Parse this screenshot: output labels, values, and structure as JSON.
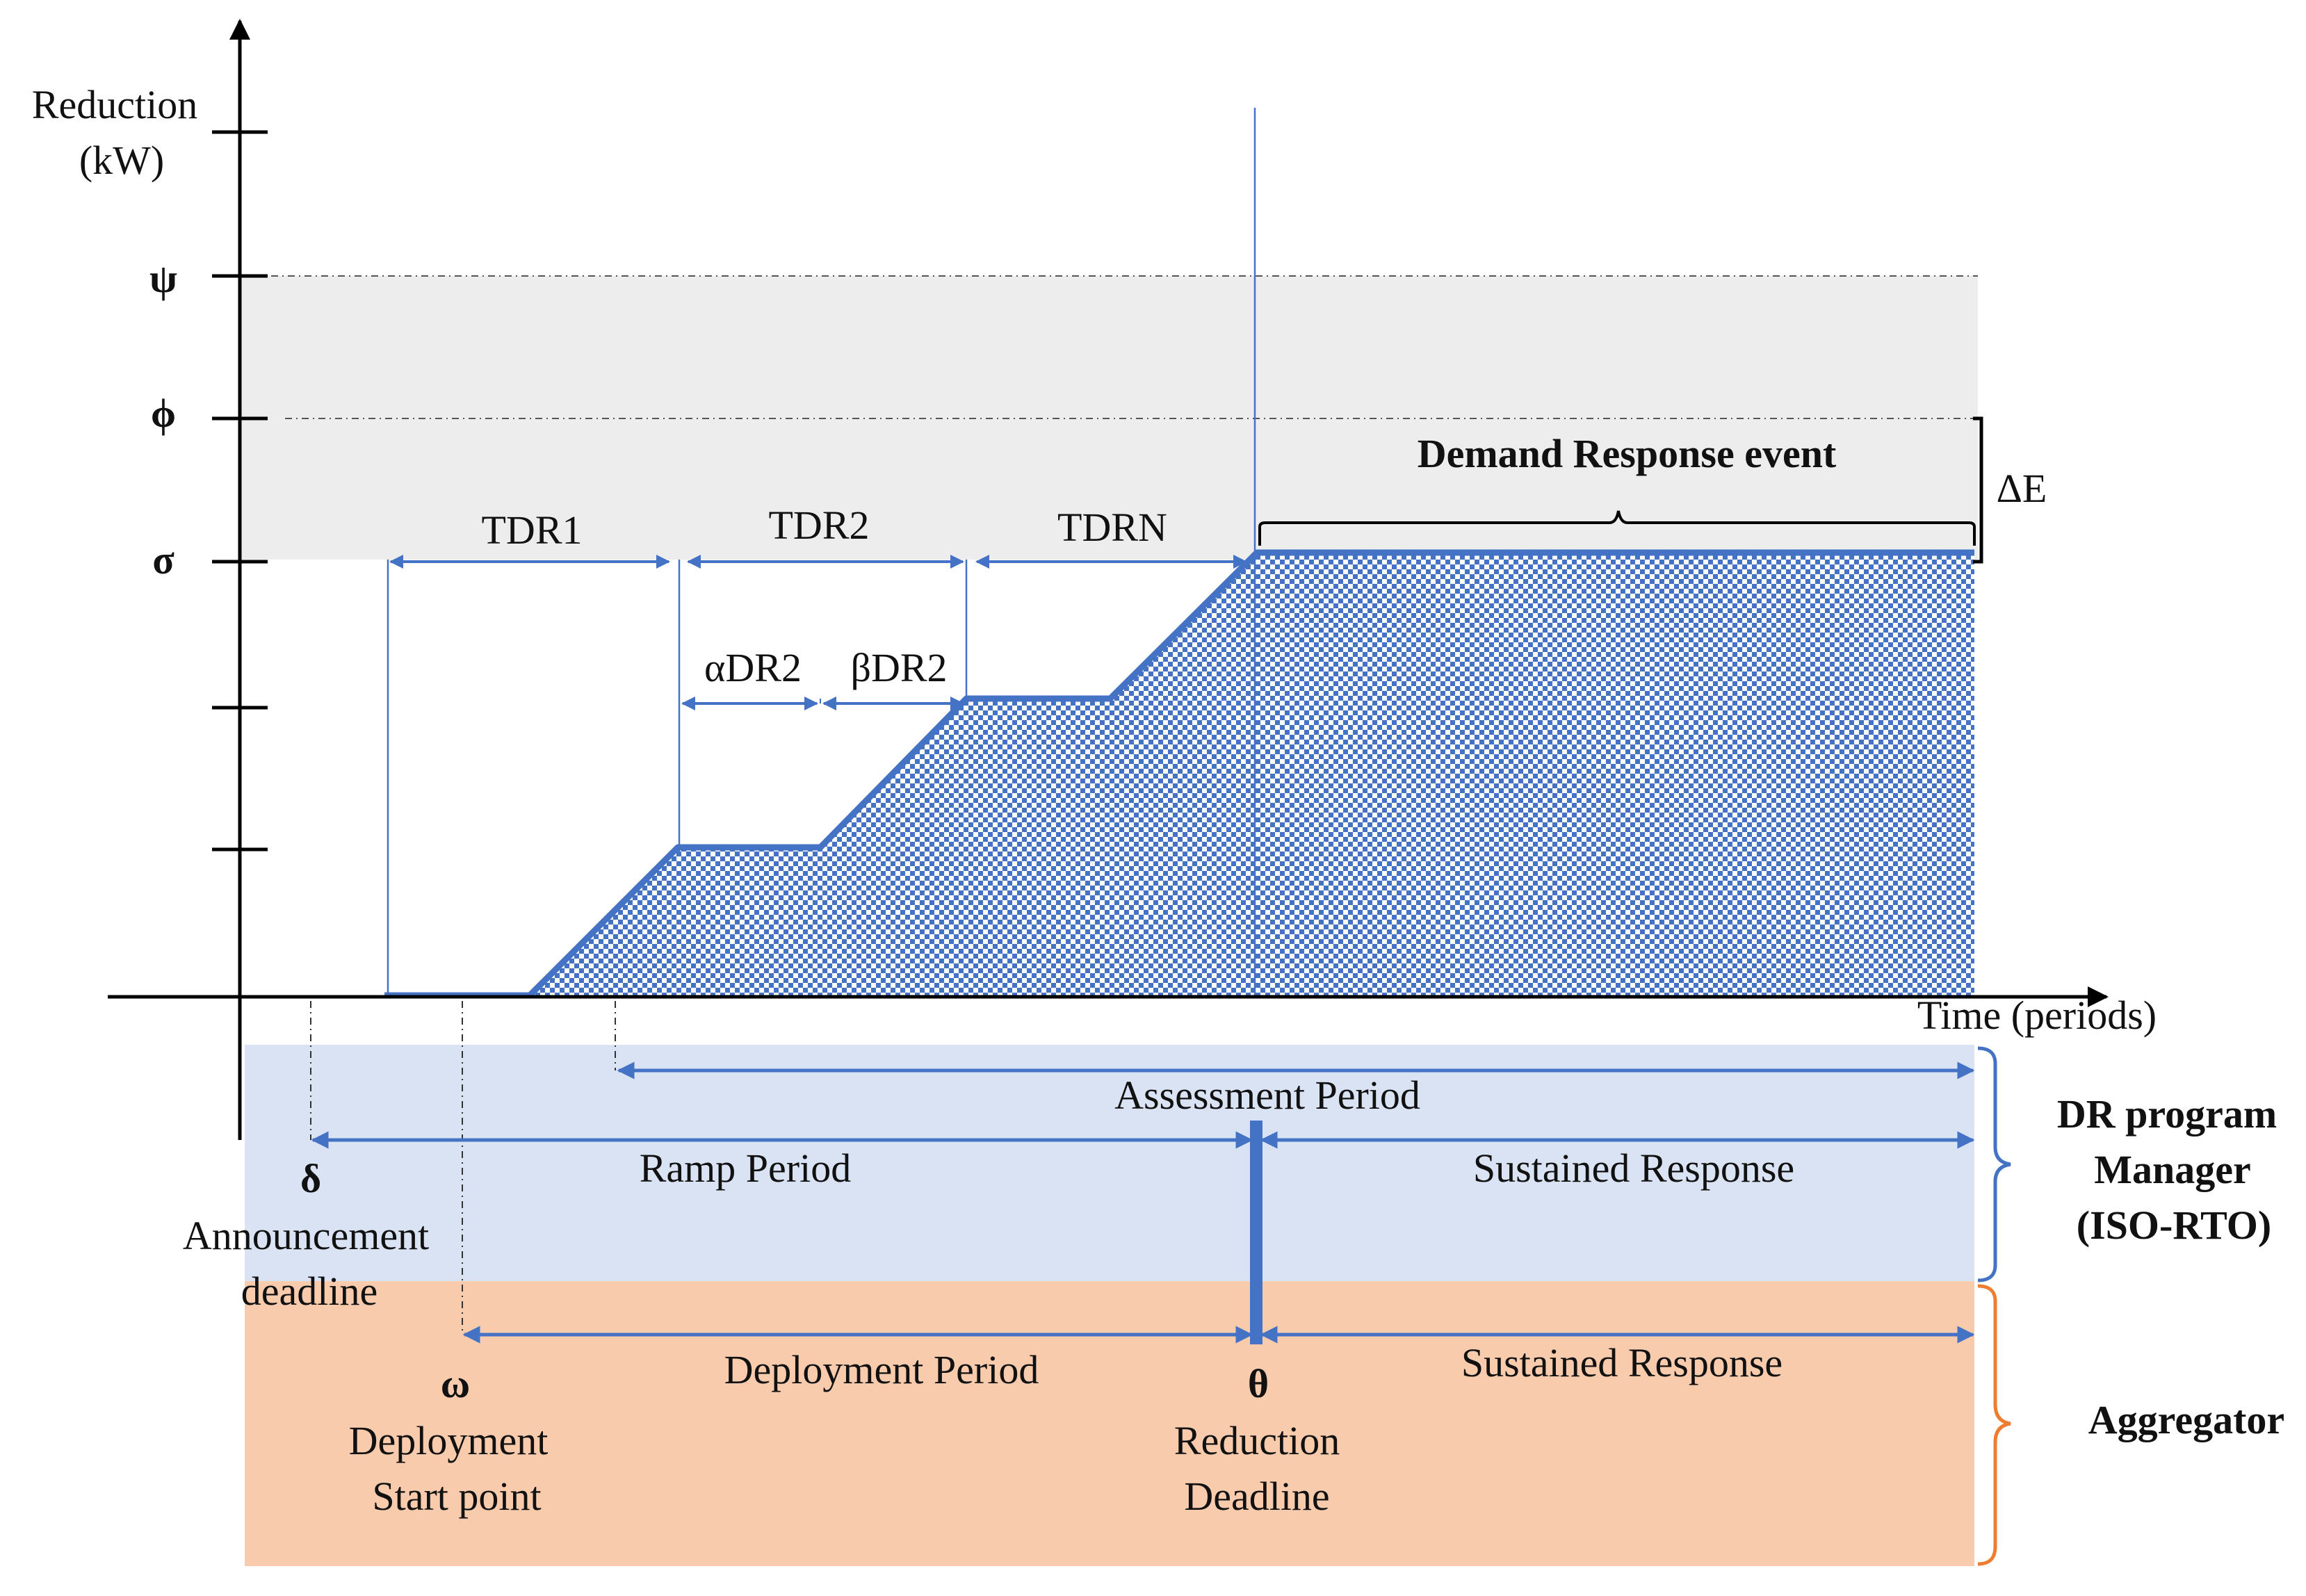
{
  "axes": {
    "y_label_line1": "Reduction",
    "y_label_line2": "(kW)",
    "x_label": "Time (periods)",
    "tick_psi": "ψ",
    "tick_phi": "ϕ",
    "tick_sigma": "σ"
  },
  "event": {
    "title": "Demand Response event",
    "delta_e": "ΔE"
  },
  "steps": {
    "tdr1": "TDR1",
    "tdr2": "TDR2",
    "tdrn": "TDRN",
    "alpha": "αDR2",
    "beta": "βDR2"
  },
  "periods": {
    "assessment": "Assessment Period",
    "ramp": "Ramp Period",
    "sustained_top": "Sustained Response",
    "deployment": "Deployment Period",
    "sustained_bottom": "Sustained Response"
  },
  "points": {
    "delta_symbol": "δ",
    "delta_line1": "Announcement",
    "delta_line2": "deadline",
    "omega_symbol": "ω",
    "omega_line1": "Deployment",
    "omega_line2": "Start point",
    "theta_symbol": "θ",
    "theta_line1": "Reduction",
    "theta_line2": "Deadline"
  },
  "actors": {
    "manager_line1": "DR program",
    "manager_line2": "Manager",
    "manager_line3": "(ISO-RTO)",
    "aggregator": "Aggregator"
  },
  "colors": {
    "accent": "#4472C4",
    "manager_band": "#DAE3F3",
    "aggregator_band": "#F8CBAD",
    "aggregator_brace": "#ED7D31",
    "limit_band": "#EDEDED"
  }
}
